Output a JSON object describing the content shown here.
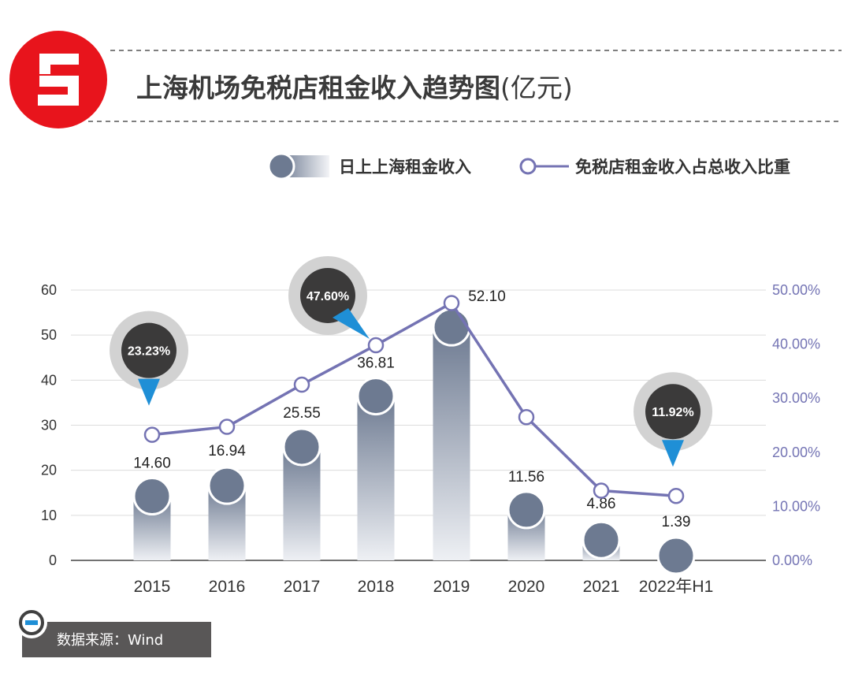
{
  "header": {
    "title": "上海机场免税店租金收入趋势图",
    "unit": "(亿元)"
  },
  "legend": {
    "bar_label": "日上上海租金收入",
    "line_label": "免税店租金收入占总收入比重"
  },
  "source": {
    "text": "数据来源：Wind"
  },
  "colors": {
    "brand_red": "#e8141c",
    "bar_dark": "#6d7a91",
    "bar_light": "#eef0f4",
    "line": "#7473b3",
    "callout_dark": "#3b3a3a",
    "callout_ring": "#d2d2d2",
    "pointer_blue": "#1f8fd6",
    "source_bg": "#595757"
  },
  "chart_data": {
    "type": "bar",
    "categories": [
      "2015",
      "2016",
      "2017",
      "2018",
      "2019",
      "2020",
      "2021",
      "2022年H1"
    ],
    "series": [
      {
        "name": "日上上海租金收入",
        "axis": "left",
        "values": [
          14.6,
          16.94,
          25.55,
          36.81,
          52.1,
          11.56,
          4.86,
          1.39
        ],
        "labels": [
          "14.60",
          "16.94",
          "25.55",
          "36.81",
          "52.10",
          "11.56",
          "4.86",
          "1.39"
        ]
      },
      {
        "name": "免税店租金收入占总收入比重",
        "type": "line",
        "axis": "right",
        "values": [
          23.23,
          24.7,
          32.5,
          39.8,
          47.6,
          26.5,
          12.9,
          11.92
        ]
      }
    ],
    "callouts": [
      {
        "index": 0,
        "text": "23.23%",
        "pointer": "down"
      },
      {
        "index": 3,
        "text": "47.60%",
        "pointer": "down-right"
      },
      {
        "index": 7,
        "text": "11.92%",
        "pointer": "down"
      }
    ],
    "left_axis": {
      "ylim": [
        0,
        60
      ],
      "ticks": [
        "0",
        "10",
        "20",
        "30",
        "40",
        "50",
        "60"
      ]
    },
    "right_axis": {
      "ylim": [
        0,
        50
      ],
      "ticks": [
        "0.00%",
        "10.00%",
        "20.00%",
        "30.00%",
        "40.00%",
        "50.00%"
      ]
    },
    "grid": true
  }
}
